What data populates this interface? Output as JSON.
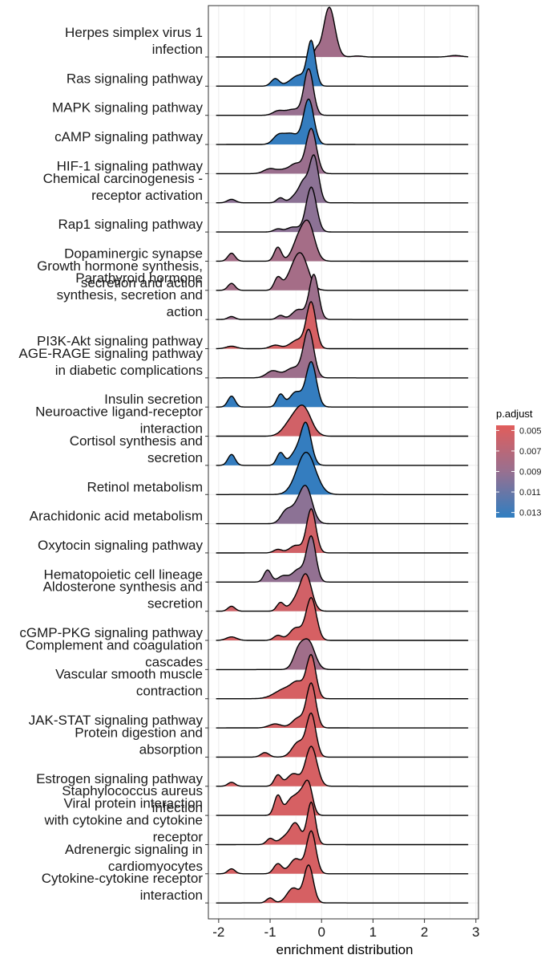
{
  "chart_data": {
    "type": "ridgeline",
    "xlabel": "enrichment distribution",
    "xlim": [
      -2.2,
      3.05
    ],
    "xticks": [
      -2,
      -1,
      0,
      1,
      2,
      3
    ],
    "grid": true,
    "legend": {
      "title": "p.adjust",
      "placement": "right",
      "ticks": [
        0.005,
        0.007,
        0.009,
        0.011,
        0.013
      ],
      "range": [
        0.0045,
        0.0135
      ],
      "colors": {
        "low": "#e15d5b",
        "high": "#2f7ec1"
      }
    },
    "pathways": [
      {
        "label": [
          "Herpes simplex virus 1",
          "infection"
        ],
        "padj": 0.0084,
        "peaks": [
          [
            0.15,
            0.11,
            1.0
          ],
          [
            -0.1,
            0.05,
            0.12
          ],
          [
            0.7,
            0.1,
            0.02
          ],
          [
            2.6,
            0.12,
            0.03
          ]
        ]
      },
      {
        "label": [
          "Ras signaling pathway"
        ],
        "padj": 0.0133,
        "peaks": [
          [
            -0.2,
            0.08,
            0.9
          ],
          [
            -0.9,
            0.08,
            0.15
          ],
          [
            -0.55,
            0.12,
            0.12
          ],
          [
            -0.4,
            0.1,
            0.15
          ]
        ]
      },
      {
        "label": [
          "MAPK signaling pathway"
        ],
        "padj": 0.009,
        "peaks": [
          [
            -0.25,
            0.09,
            0.92
          ],
          [
            -0.85,
            0.1,
            0.08
          ],
          [
            -0.55,
            0.15,
            0.12
          ]
        ]
      },
      {
        "label": [
          "cAMP signaling pathway"
        ],
        "padj": 0.0133,
        "peaks": [
          [
            -0.25,
            0.1,
            0.9
          ],
          [
            -0.85,
            0.1,
            0.15
          ],
          [
            -0.6,
            0.15,
            0.22
          ]
        ]
      },
      {
        "label": [
          "HIF-1 signaling pathway"
        ],
        "padj": 0.0088,
        "peaks": [
          [
            -0.2,
            0.1,
            0.9
          ],
          [
            -1.0,
            0.12,
            0.1
          ],
          [
            -0.75,
            0.1,
            0.06
          ],
          [
            -0.5,
            0.12,
            0.2
          ]
        ]
      },
      {
        "label": [
          "Chemical carcinogenesis -",
          "receptor activation"
        ],
        "padj": 0.0095,
        "peaks": [
          [
            -0.15,
            0.09,
            0.95
          ],
          [
            -1.75,
            0.08,
            0.07
          ],
          [
            -0.8,
            0.07,
            0.1
          ],
          [
            -0.5,
            0.1,
            0.15
          ],
          [
            -0.35,
            0.08,
            0.35
          ]
        ]
      },
      {
        "label": [
          "Rap1 signaling pathway"
        ],
        "padj": 0.0095,
        "peaks": [
          [
            -0.2,
            0.1,
            0.9
          ],
          [
            -0.85,
            0.08,
            0.06
          ],
          [
            -0.55,
            0.12,
            0.1
          ]
        ]
      },
      {
        "label": [
          "Dopaminergic synapse"
        ],
        "padj": 0.0082,
        "peaks": [
          [
            -0.25,
            0.12,
            0.7
          ],
          [
            -1.75,
            0.07,
            0.16
          ],
          [
            -0.85,
            0.07,
            0.28
          ],
          [
            -0.45,
            0.12,
            0.4
          ]
        ]
      },
      {
        "label": [
          "Growth hormone synthesis,",
          "secretion and action"
        ],
        "padj": 0.0082,
        "peaks": [
          [
            -0.4,
            0.14,
            0.7
          ],
          [
            -1.75,
            0.07,
            0.14
          ],
          [
            -0.85,
            0.07,
            0.25
          ],
          [
            -0.6,
            0.12,
            0.2
          ]
        ]
      },
      {
        "label": [
          "Parathyroid hormone",
          "synthesis, secretion and",
          "action"
        ],
        "padj": 0.0087,
        "peaks": [
          [
            -0.15,
            0.09,
            0.9
          ],
          [
            -1.75,
            0.07,
            0.06
          ],
          [
            -0.8,
            0.07,
            0.08
          ],
          [
            -0.45,
            0.12,
            0.2
          ]
        ]
      },
      {
        "label": [
          "PI3K-Akt signaling pathway"
        ],
        "padj": 0.0052,
        "peaks": [
          [
            -0.2,
            0.09,
            0.9
          ],
          [
            -1.75,
            0.1,
            0.05
          ],
          [
            -0.9,
            0.1,
            0.07
          ],
          [
            -0.45,
            0.15,
            0.18
          ]
        ]
      },
      {
        "label": [
          "AGE-RAGE signaling pathway",
          "in diabetic complications"
        ],
        "padj": 0.0087,
        "peaks": [
          [
            -0.25,
            0.1,
            0.95
          ],
          [
            -0.95,
            0.12,
            0.14
          ],
          [
            -0.55,
            0.15,
            0.2
          ]
        ]
      },
      {
        "label": [
          "Insulin secretion"
        ],
        "padj": 0.0133,
        "peaks": [
          [
            -0.2,
            0.1,
            0.9
          ],
          [
            -1.75,
            0.07,
            0.22
          ],
          [
            -0.8,
            0.07,
            0.25
          ],
          [
            -0.5,
            0.12,
            0.3
          ]
        ]
      },
      {
        "label": [
          "Neuroactive ligand-receptor",
          "interaction"
        ],
        "padj": 0.0055,
        "peaks": [
          [
            -0.35,
            0.15,
            0.55
          ],
          [
            -0.6,
            0.15,
            0.25
          ]
        ]
      },
      {
        "label": [
          "Cortisol synthesis and",
          "secretion"
        ],
        "padj": 0.0133,
        "peaks": [
          [
            -0.3,
            0.1,
            0.8
          ],
          [
            -1.75,
            0.07,
            0.22
          ],
          [
            -0.8,
            0.07,
            0.25
          ],
          [
            -0.5,
            0.12,
            0.25
          ]
        ]
      },
      {
        "label": [
          "Retinol metabolism"
        ],
        "padj": 0.0133,
        "peaks": [
          [
            -0.3,
            0.18,
            0.85
          ]
        ]
      },
      {
        "label": [
          "Arachidonic acid metabolism"
        ],
        "padj": 0.0095,
        "peaks": [
          [
            -0.3,
            0.12,
            0.7
          ],
          [
            -0.7,
            0.1,
            0.22
          ],
          [
            -0.5,
            0.12,
            0.25
          ]
        ]
      },
      {
        "label": [
          "Oxytocin signaling pathway"
        ],
        "padj": 0.0055,
        "peaks": [
          [
            -0.2,
            0.09,
            0.88
          ],
          [
            -0.85,
            0.08,
            0.07
          ],
          [
            -0.5,
            0.12,
            0.15
          ]
        ]
      },
      {
        "label": [
          "Hematopoietic cell lineage"
        ],
        "padj": 0.0092,
        "peaks": [
          [
            -0.2,
            0.09,
            0.9
          ],
          [
            -1.05,
            0.07,
            0.24
          ],
          [
            -0.75,
            0.1,
            0.12
          ],
          [
            -0.45,
            0.12,
            0.25
          ]
        ]
      },
      {
        "label": [
          "Aldosterone synthesis and",
          "secretion"
        ],
        "padj": 0.0055,
        "peaks": [
          [
            -0.3,
            0.11,
            0.7
          ],
          [
            -1.75,
            0.07,
            0.1
          ],
          [
            -0.8,
            0.07,
            0.17
          ],
          [
            -0.5,
            0.12,
            0.2
          ]
        ]
      },
      {
        "label": [
          "cGMP-PKG signaling pathway"
        ],
        "padj": 0.0052,
        "peaks": [
          [
            -0.2,
            0.1,
            0.85
          ],
          [
            -1.75,
            0.1,
            0.07
          ],
          [
            -0.85,
            0.08,
            0.1
          ],
          [
            -0.5,
            0.12,
            0.25
          ]
        ]
      },
      {
        "label": [
          "Complement and coagulation",
          "cascades"
        ],
        "padj": 0.0085,
        "peaks": [
          [
            -0.25,
            0.12,
            0.55
          ],
          [
            -0.45,
            0.1,
            0.35
          ]
        ]
      },
      {
        "label": [
          "Vascular smooth muscle",
          "contraction"
        ],
        "padj": 0.0052,
        "peaks": [
          [
            -0.2,
            0.09,
            0.85
          ],
          [
            -0.7,
            0.2,
            0.2
          ],
          [
            -0.45,
            0.12,
            0.25
          ]
        ]
      },
      {
        "label": [
          "JAK-STAT signaling pathway"
        ],
        "padj": 0.0052,
        "peaks": [
          [
            -0.2,
            0.09,
            0.88
          ],
          [
            -0.9,
            0.12,
            0.08
          ],
          [
            -0.45,
            0.12,
            0.2
          ]
        ]
      },
      {
        "label": [
          "Protein digestion and",
          "absorption"
        ],
        "padj": 0.0052,
        "peaks": [
          [
            -0.2,
            0.09,
            0.85
          ],
          [
            -1.1,
            0.08,
            0.09
          ],
          [
            -0.45,
            0.12,
            0.3
          ]
        ]
      },
      {
        "label": [
          "Estrogen signaling pathway"
        ],
        "padj": 0.0052,
        "peaks": [
          [
            -0.2,
            0.11,
            0.8
          ],
          [
            -1.75,
            0.07,
            0.08
          ],
          [
            -0.85,
            0.07,
            0.22
          ],
          [
            -0.55,
            0.12,
            0.25
          ]
        ]
      },
      {
        "label": [
          "Staphylococcus aureus",
          "infection"
        ],
        "padj": 0.0052,
        "peaks": [
          [
            -0.25,
            0.08,
            0.55
          ],
          [
            -0.85,
            0.07,
            0.4
          ],
          [
            -0.4,
            0.1,
            0.4
          ],
          [
            -0.6,
            0.1,
            0.3
          ]
        ]
      },
      {
        "label": [
          "Viral protein interaction",
          "with cytokine and cytokine",
          "receptor"
        ],
        "padj": 0.0052,
        "peaks": [
          [
            -0.2,
            0.08,
            0.85
          ],
          [
            -1.0,
            0.07,
            0.12
          ],
          [
            -0.5,
            0.1,
            0.4
          ],
          [
            -0.7,
            0.12,
            0.15
          ]
        ]
      },
      {
        "label": [
          "Adrenergic signaling in",
          "cardiomyocytes"
        ],
        "padj": 0.0052,
        "peaks": [
          [
            -0.2,
            0.09,
            0.85
          ],
          [
            -1.75,
            0.07,
            0.1
          ],
          [
            -0.85,
            0.08,
            0.2
          ],
          [
            -0.5,
            0.12,
            0.3
          ]
        ]
      },
      {
        "label": [
          "Cytokine-cytokine receptor",
          "interaction"
        ],
        "padj": 0.0052,
        "peaks": [
          [
            -0.25,
            0.09,
            0.75
          ],
          [
            -1.0,
            0.07,
            0.1
          ],
          [
            -0.55,
            0.12,
            0.3
          ]
        ]
      }
    ]
  }
}
